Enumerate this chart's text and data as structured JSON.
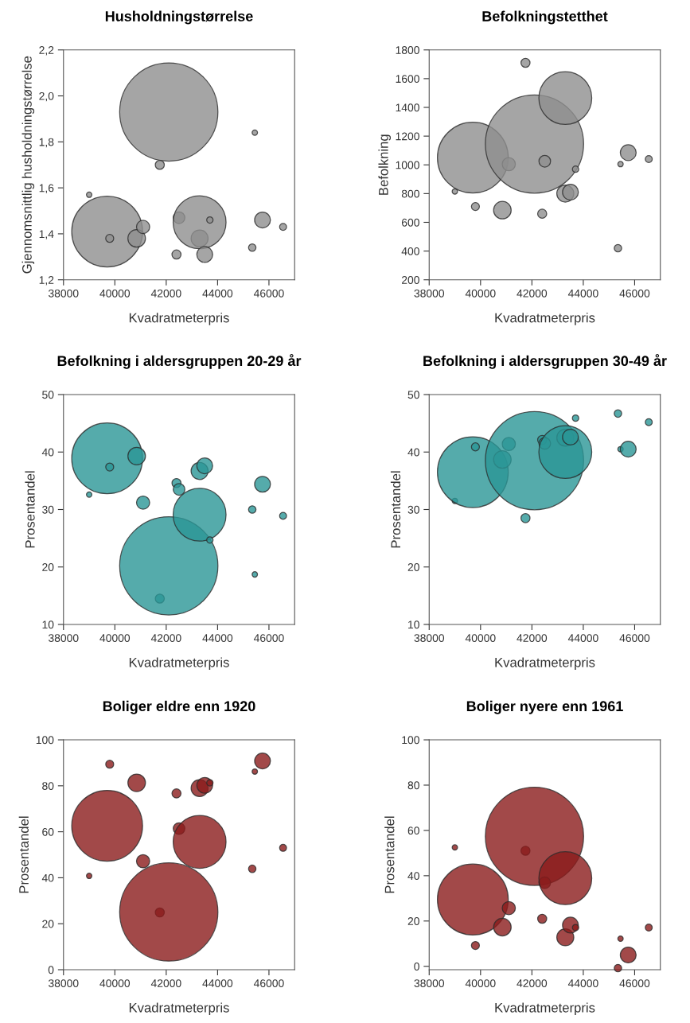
{
  "chart_data": [
    {
      "type": "bubble",
      "title": "Husholdningstørrelse",
      "xlabel": "Kvadratmeterpris",
      "ylabel": "Gjennomsnittlig husholdningstørrelse",
      "color": "#8f8f8f",
      "x": [
        39000,
        39700,
        39800,
        40850,
        41100,
        41750,
        42100,
        42400,
        42500,
        43300,
        43300,
        43500,
        43700,
        45350,
        45450,
        45750,
        46550
      ],
      "sizes": [
        0.003,
        0.52,
        0.0066,
        0.032,
        0.018,
        0.0085,
        1,
        0.0085,
        0.014,
        0.03,
        0.29,
        0.026,
        0.0042,
        0.0057,
        0.003,
        0.026,
        0.005
      ],
      "values": [
        1.57,
        1.41,
        1.38,
        1.38,
        1.43,
        1.7,
        1.93,
        1.31,
        1.47,
        1.38,
        1.45,
        1.31,
        1.46,
        1.34,
        1.84,
        1.46,
        1.43
      ],
      "xlim": [
        38000,
        47000
      ],
      "xticks": [
        38000,
        40000,
        42000,
        44000,
        46000
      ],
      "ylim": [
        1.2,
        2.2
      ],
      "yticks": [
        {
          "value": 1.2,
          "label": "1,2"
        },
        {
          "value": 1.4,
          "label": "1,4"
        },
        {
          "value": 1.6,
          "label": "1,6"
        },
        {
          "value": 1.8,
          "label": "1,8"
        },
        {
          "value": 2.0,
          "label": "2,0"
        },
        {
          "value": 2.2,
          "label": "2,2"
        }
      ]
    },
    {
      "type": "bubble",
      "title": "Befolkningstetthet",
      "xlabel": "Kvadratmeterpris",
      "ylabel": "Befolkning",
      "color": "#8f8f8f",
      "x": [
        39000,
        39700,
        39800,
        40850,
        41100,
        41750,
        42100,
        42400,
        42500,
        43300,
        43300,
        43500,
        43700,
        45350,
        45450,
        45750,
        46550
      ],
      "sizes": [
        0.003,
        0.52,
        0.0066,
        0.032,
        0.018,
        0.0085,
        1,
        0.0085,
        0.014,
        0.03,
        0.29,
        0.026,
        0.0042,
        0.0057,
        0.003,
        0.026,
        0.005
      ],
      "values": [
        815,
        1050,
        710,
        685,
        1005,
        1710,
        1145,
        660,
        1025,
        800,
        1465,
        810,
        970,
        420,
        1005,
        1085,
        1040
      ],
      "xlim": [
        38000,
        47000
      ],
      "xticks": [
        38000,
        40000,
        42000,
        44000,
        46000
      ],
      "ylim": [
        200,
        1800
      ],
      "yticks": [
        200,
        400,
        600,
        800,
        1000,
        1200,
        1400,
        1600,
        1800
      ]
    },
    {
      "type": "bubble",
      "title": "Befolkning i aldersgruppen 20-29 år",
      "xlabel": "Kvadratmeterpris",
      "ylabel": "Prosentandel",
      "color": "#2a9696",
      "x": [
        39000,
        39700,
        39800,
        40850,
        41100,
        41750,
        42100,
        42400,
        42500,
        43300,
        43300,
        43500,
        43700,
        45350,
        45450,
        45750,
        46550
      ],
      "sizes": [
        0.003,
        0.52,
        0.0066,
        0.032,
        0.018,
        0.0085,
        1,
        0.0085,
        0.014,
        0.03,
        0.29,
        0.026,
        0.0042,
        0.0057,
        0.003,
        0.026,
        0.005
      ],
      "values": [
        32.6,
        38.9,
        37.4,
        39.3,
        31.2,
        14.5,
        20.2,
        34.6,
        33.5,
        36.7,
        29.1,
        37.6,
        24.7,
        30.0,
        18.7,
        34.4,
        28.9
      ],
      "xlim": [
        38000,
        47000
      ],
      "xticks": [
        38000,
        40000,
        42000,
        44000,
        46000
      ],
      "ylim": [
        10,
        50
      ],
      "yticks": [
        10,
        20,
        30,
        40,
        50
      ]
    },
    {
      "type": "bubble",
      "title": "Befolkning i aldersgruppen 30-49 år",
      "xlabel": "Kvadratmeterpris",
      "ylabel": "Prosentandel",
      "color": "#2a9696",
      "x": [
        39000,
        39700,
        39800,
        40850,
        41100,
        41750,
        42100,
        42400,
        42500,
        43300,
        43300,
        43500,
        43700,
        45350,
        45450,
        45750,
        46550
      ],
      "sizes": [
        0.003,
        0.52,
        0.0066,
        0.032,
        0.018,
        0.0085,
        1,
        0.0085,
        0.014,
        0.03,
        0.29,
        0.026,
        0.0042,
        0.0057,
        0.003,
        0.026,
        0.005
      ],
      "values": [
        31.5,
        36.5,
        40.9,
        38.7,
        41.4,
        28.5,
        38.5,
        42.1,
        41.5,
        42.5,
        40.0,
        42.6,
        45.9,
        46.7,
        40.5,
        40.5,
        45.2
      ],
      "xlim": [
        38000,
        47000
      ],
      "xticks": [
        38000,
        40000,
        42000,
        44000,
        46000
      ],
      "ylim": [
        10,
        50
      ],
      "yticks": [
        10,
        20,
        30,
        40,
        50
      ]
    },
    {
      "type": "bubble",
      "title": "Boliger eldre enn 1920",
      "xlabel": "Kvadratmeterpris",
      "ylabel": "Prosentandel",
      "color": "#8b1c1c",
      "x": [
        39000,
        39700,
        39800,
        40850,
        41100,
        41750,
        42100,
        42400,
        42500,
        43300,
        43300,
        43500,
        43700,
        45350,
        45450,
        45750,
        46550
      ],
      "sizes": [
        0.003,
        0.52,
        0.0066,
        0.032,
        0.018,
        0.0085,
        1,
        0.0085,
        0.014,
        0.03,
        0.29,
        0.026,
        0.0042,
        0.0057,
        0.003,
        0.026,
        0.005
      ],
      "values": [
        40.8,
        62.6,
        89.4,
        81.3,
        47.2,
        24.9,
        25.1,
        76.7,
        61.4,
        79.0,
        55.6,
        80.2,
        81.3,
        43.9,
        86.2,
        90.8,
        53.0
      ],
      "xlim": [
        38000,
        47000
      ],
      "xticks": [
        38000,
        40000,
        42000,
        44000,
        46000
      ],
      "ylim": [
        0,
        100
      ],
      "yticks": [
        0,
        20,
        40,
        60,
        80,
        100
      ]
    },
    {
      "type": "bubble",
      "title": "Boliger nyere enn 1961",
      "xlabel": "Kvadratmeterpris",
      "ylabel": "Prosentandel",
      "color": "#8b1c1c",
      "x": [
        39000,
        39700,
        39800,
        40850,
        41100,
        41750,
        42100,
        42400,
        42500,
        43300,
        43300,
        43500,
        43700,
        45350,
        45450,
        45750,
        46550
      ],
      "sizes": [
        0.003,
        0.52,
        0.0066,
        0.032,
        0.018,
        0.0085,
        1,
        0.0085,
        0.014,
        0.03,
        0.29,
        0.026,
        0.0042,
        0.0057,
        0.003,
        0.026,
        0.005
      ],
      "values": [
        52.5,
        29.5,
        9.2,
        17.3,
        25.7,
        51.0,
        57.4,
        21.0,
        36.9,
        12.8,
        38.9,
        18.2,
        17.1,
        -0.8,
        12.2,
        5.0,
        17.1
      ],
      "xlim": [
        38000,
        47000
      ],
      "xticks": [
        38000,
        40000,
        42000,
        44000,
        46000
      ],
      "ylim": [
        -1.5,
        100
      ],
      "yticks": [
        0,
        20,
        40,
        60,
        80,
        100
      ]
    }
  ]
}
